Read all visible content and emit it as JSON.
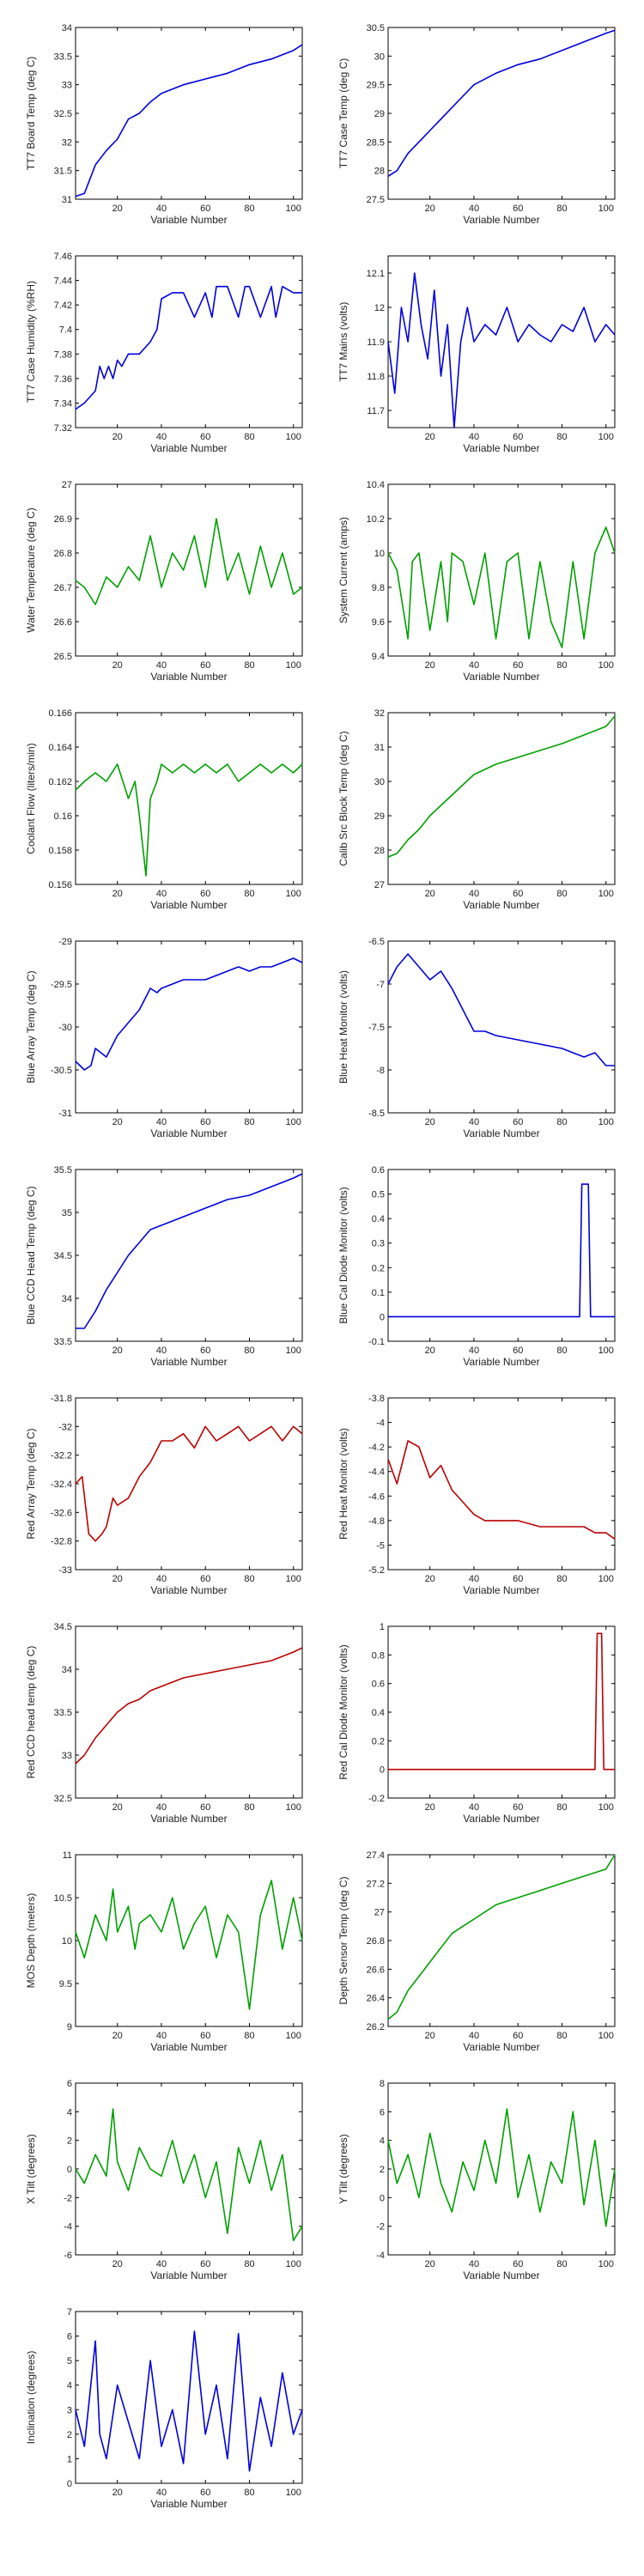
{
  "colors": {
    "blue": "#0000dd",
    "green": "#00a000",
    "red": "#bb0000"
  },
  "chart_data": [
    {
      "type": "line",
      "ylabel": "TT7 Board Temp (deg C)",
      "xlabel": "Variable Number",
      "ylim": [
        31,
        34
      ],
      "yticks": [
        "31",
        "31.5",
        "32",
        "32.5",
        "33",
        "33.5",
        "34"
      ],
      "color": "blue",
      "x": [
        1,
        5,
        10,
        15,
        20,
        25,
        30,
        35,
        40,
        50,
        60,
        70,
        80,
        90,
        100,
        104
      ],
      "y": [
        31.05,
        31.1,
        31.6,
        31.85,
        32.05,
        32.4,
        32.5,
        32.7,
        32.85,
        33.0,
        33.1,
        33.2,
        33.35,
        33.45,
        33.6,
        33.7
      ]
    },
    {
      "type": "line",
      "ylabel": "TT7 Case Temp (deg C)",
      "xlabel": "Variable Number",
      "ylim": [
        27.5,
        30.5
      ],
      "yticks": [
        "27.5",
        "28",
        "28.5",
        "29",
        "29.5",
        "30",
        "30.5"
      ],
      "color": "blue",
      "x": [
        1,
        5,
        10,
        15,
        20,
        25,
        30,
        35,
        40,
        50,
        60,
        70,
        80,
        90,
        100,
        104
      ],
      "y": [
        27.9,
        28.0,
        28.3,
        28.5,
        28.7,
        28.9,
        29.1,
        29.3,
        29.5,
        29.7,
        29.85,
        29.95,
        30.1,
        30.25,
        30.4,
        30.45
      ]
    },
    {
      "type": "line",
      "ylabel": "TT7 Case Humidity (%RH)",
      "xlabel": "Variable Number",
      "ylim": [
        7.32,
        7.46
      ],
      "yticks": [
        "7.32",
        "7.34",
        "7.36",
        "7.38",
        "7.4",
        "7.42",
        "7.44",
        "7.46"
      ],
      "color": "blue",
      "x": [
        1,
        5,
        10,
        12,
        14,
        16,
        18,
        20,
        22,
        25,
        30,
        35,
        38,
        40,
        45,
        50,
        55,
        60,
        63,
        65,
        70,
        75,
        78,
        80,
        85,
        90,
        92,
        95,
        100,
        104
      ],
      "y": [
        7.335,
        7.34,
        7.35,
        7.37,
        7.36,
        7.37,
        7.36,
        7.375,
        7.37,
        7.38,
        7.38,
        7.39,
        7.4,
        7.425,
        7.43,
        7.43,
        7.41,
        7.43,
        7.41,
        7.435,
        7.435,
        7.41,
        7.435,
        7.435,
        7.41,
        7.435,
        7.41,
        7.435,
        7.43,
        7.43
      ]
    },
    {
      "type": "line",
      "ylabel": "TT7 Mains  (volts)",
      "xlabel": "Variable Number",
      "ylim": [
        11.65,
        12.15
      ],
      "yticks": [
        "11.7",
        "11.8",
        "11.9",
        "12",
        "12.1"
      ],
      "color": "blue",
      "x": [
        1,
        4,
        7,
        10,
        13,
        16,
        19,
        22,
        25,
        28,
        31,
        34,
        37,
        40,
        45,
        50,
        55,
        60,
        65,
        70,
        75,
        80,
        85,
        90,
        95,
        100,
        104
      ],
      "y": [
        11.9,
        11.75,
        12.0,
        11.9,
        12.1,
        11.95,
        11.85,
        12.05,
        11.8,
        11.95,
        11.65,
        11.9,
        12.0,
        11.9,
        11.95,
        11.92,
        12.0,
        11.9,
        11.95,
        11.92,
        11.9,
        11.95,
        11.93,
        12.0,
        11.9,
        11.95,
        11.92
      ]
    },
    {
      "type": "line",
      "ylabel": "Water Temperature (deg C)",
      "xlabel": "Variable Number",
      "ylim": [
        26.5,
        27
      ],
      "yticks": [
        "26.5",
        "26.6",
        "26.7",
        "26.8",
        "26.9",
        "27"
      ],
      "color": "green",
      "x": [
        1,
        5,
        10,
        15,
        20,
        25,
        30,
        35,
        40,
        45,
        50,
        55,
        60,
        65,
        70,
        75,
        80,
        85,
        90,
        95,
        100,
        104
      ],
      "y": [
        26.72,
        26.7,
        26.65,
        26.73,
        26.7,
        26.76,
        26.72,
        26.85,
        26.7,
        26.8,
        26.75,
        26.85,
        26.7,
        26.9,
        26.72,
        26.8,
        26.68,
        26.82,
        26.7,
        26.8,
        26.68,
        26.7
      ]
    },
    {
      "type": "line",
      "ylabel": "System Current (amps)",
      "xlabel": "Variable Number",
      "ylim": [
        9.4,
        10.4
      ],
      "yticks": [
        "9.4",
        "9.6",
        "9.8",
        "10",
        "10.2",
        "10.4"
      ],
      "color": "green",
      "x": [
        1,
        5,
        10,
        12,
        15,
        20,
        25,
        28,
        30,
        35,
        40,
        45,
        50,
        55,
        60,
        65,
        70,
        75,
        80,
        85,
        90,
        95,
        100,
        104
      ],
      "y": [
        10.0,
        9.9,
        9.5,
        9.95,
        10.0,
        9.55,
        9.95,
        9.6,
        10.0,
        9.95,
        9.7,
        10.0,
        9.5,
        9.95,
        10.0,
        9.5,
        9.95,
        9.6,
        9.45,
        9.95,
        9.5,
        10.0,
        10.15,
        10.0
      ]
    },
    {
      "type": "line",
      "ylabel": "Coolant Flow (liters/min)",
      "xlabel": "Variable Number",
      "ylim": [
        0.156,
        0.166
      ],
      "yticks": [
        "0.156",
        "0.158",
        "0.16",
        "0.162",
        "0.164",
        "0.166"
      ],
      "color": "green",
      "x": [
        1,
        5,
        10,
        15,
        20,
        25,
        28,
        30,
        33,
        35,
        38,
        40,
        45,
        50,
        55,
        60,
        65,
        70,
        75,
        80,
        85,
        90,
        95,
        100,
        104
      ],
      "y": [
        0.1615,
        0.162,
        0.1625,
        0.162,
        0.163,
        0.161,
        0.162,
        0.16,
        0.1565,
        0.161,
        0.162,
        0.163,
        0.1625,
        0.163,
        0.1625,
        0.163,
        0.1625,
        0.163,
        0.162,
        0.1625,
        0.163,
        0.1625,
        0.163,
        0.1625,
        0.163
      ]
    },
    {
      "type": "line",
      "ylabel": "Calib Src Block Temp (deg C)",
      "xlabel": "Variable Number",
      "ylim": [
        27,
        32
      ],
      "yticks": [
        "27",
        "28",
        "29",
        "30",
        "31",
        "32"
      ],
      "color": "green",
      "x": [
        1,
        5,
        10,
        15,
        20,
        25,
        30,
        35,
        40,
        50,
        60,
        70,
        80,
        90,
        100,
        104
      ],
      "y": [
        27.8,
        27.9,
        28.3,
        28.6,
        29.0,
        29.3,
        29.6,
        29.9,
        30.2,
        30.5,
        30.7,
        30.9,
        31.1,
        31.35,
        31.6,
        31.9
      ]
    },
    {
      "type": "line",
      "ylabel": "Blue Array Temp (deg C)",
      "xlabel": "Variable Number",
      "ylim": [
        -31,
        -29
      ],
      "yticks": [
        "-31",
        "-30.5",
        "-30",
        "-29.5",
        "-29"
      ],
      "color": "blue",
      "x": [
        1,
        5,
        8,
        10,
        15,
        20,
        25,
        30,
        35,
        38,
        40,
        45,
        50,
        55,
        60,
        65,
        70,
        75,
        80,
        85,
        90,
        95,
        100,
        104
      ],
      "y": [
        -30.4,
        -30.5,
        -30.45,
        -30.25,
        -30.35,
        -30.1,
        -29.95,
        -29.8,
        -29.55,
        -29.6,
        -29.55,
        -29.5,
        -29.45,
        -29.45,
        -29.45,
        -29.4,
        -29.35,
        -29.3,
        -29.35,
        -29.3,
        -29.3,
        -29.25,
        -29.2,
        -29.25
      ]
    },
    {
      "type": "line",
      "ylabel": "Blue Heat Monitor (volts)",
      "xlabel": "Variable Number",
      "ylim": [
        -8.5,
        -6.5
      ],
      "yticks": [
        "-8.5",
        "-8",
        "-7.5",
        "-7",
        "-6.5"
      ],
      "color": "blue",
      "x": [
        1,
        5,
        10,
        15,
        20,
        25,
        30,
        35,
        40,
        45,
        50,
        60,
        70,
        80,
        90,
        95,
        100,
        104
      ],
      "y": [
        -7.0,
        -6.8,
        -6.65,
        -6.8,
        -6.95,
        -6.85,
        -7.05,
        -7.3,
        -7.55,
        -7.55,
        -7.6,
        -7.65,
        -7.7,
        -7.75,
        -7.85,
        -7.8,
        -7.95,
        -7.95
      ]
    },
    {
      "type": "line",
      "ylabel": "Blue CCD Head Temp (deg C)",
      "xlabel": "Variable Number",
      "ylim": [
        33.5,
        35.5
      ],
      "yticks": [
        "33.5",
        "34",
        "34.5",
        "35",
        "35.5"
      ],
      "color": "blue",
      "x": [
        1,
        5,
        10,
        15,
        20,
        25,
        30,
        35,
        40,
        50,
        60,
        70,
        80,
        90,
        100,
        104
      ],
      "y": [
        33.65,
        33.65,
        33.85,
        34.1,
        34.3,
        34.5,
        34.65,
        34.8,
        34.85,
        34.95,
        35.05,
        35.15,
        35.2,
        35.3,
        35.4,
        35.45
      ]
    },
    {
      "type": "line",
      "ylabel": "Blue Cal Diode Monitor (volts)",
      "xlabel": "Variable Number",
      "ylim": [
        -0.1,
        0.6
      ],
      "yticks": [
        "-0.1",
        "0",
        "0.1",
        "0.2",
        "0.3",
        "0.4",
        "0.5",
        "0.6"
      ],
      "color": "blue",
      "x": [
        1,
        10,
        20,
        30,
        40,
        50,
        60,
        70,
        80,
        88,
        89,
        90,
        91,
        92,
        93,
        100,
        104
      ],
      "y": [
        0,
        0,
        0,
        0,
        0,
        0,
        0,
        0,
        0,
        0,
        0.54,
        0.54,
        0.54,
        0.54,
        0,
        0,
        0
      ]
    },
    {
      "type": "line",
      "ylabel": "Red Array Temp (deg C)",
      "xlabel": "Variable Number",
      "ylim": [
        -33,
        -31.8
      ],
      "yticks": [
        "-33",
        "-32.8",
        "-32.6",
        "-32.4",
        "-32.2",
        "-32",
        "-31.8"
      ],
      "color": "red",
      "x": [
        1,
        4,
        7,
        10,
        13,
        15,
        18,
        20,
        25,
        30,
        35,
        40,
        45,
        50,
        55,
        60,
        65,
        70,
        75,
        80,
        85,
        90,
        95,
        100,
        104
      ],
      "y": [
        -32.4,
        -32.35,
        -32.75,
        -32.8,
        -32.75,
        -32.7,
        -32.5,
        -32.55,
        -32.5,
        -32.35,
        -32.25,
        -32.1,
        -32.1,
        -32.05,
        -32.15,
        -32.0,
        -32.1,
        -32.05,
        -32.0,
        -32.1,
        -32.05,
        -32.0,
        -32.1,
        -32.0,
        -32.05
      ]
    },
    {
      "type": "line",
      "ylabel": "Red Heat Monitor (volts)",
      "xlabel": "Variable Number",
      "ylim": [
        -5.2,
        -3.8
      ],
      "yticks": [
        "-5.2",
        "-5",
        "-4.8",
        "-4.6",
        "-4.4",
        "-4.2",
        "-4",
        "-3.8"
      ],
      "color": "red",
      "x": [
        1,
        5,
        10,
        15,
        20,
        25,
        30,
        35,
        40,
        45,
        50,
        60,
        70,
        80,
        90,
        95,
        100,
        104
      ],
      "y": [
        -4.3,
        -4.5,
        -4.15,
        -4.2,
        -4.45,
        -4.35,
        -4.55,
        -4.65,
        -4.75,
        -4.8,
        -4.8,
        -4.8,
        -4.85,
        -4.85,
        -4.85,
        -4.9,
        -4.9,
        -4.95
      ]
    },
    {
      "type": "line",
      "ylabel": "Red CCD head temp (deg C)",
      "xlabel": "Variable Number",
      "ylim": [
        32.5,
        34.5
      ],
      "yticks": [
        "32.5",
        "33",
        "33.5",
        "34",
        "34.5"
      ],
      "color": "red",
      "x": [
        1,
        5,
        10,
        15,
        20,
        25,
        30,
        35,
        40,
        50,
        60,
        70,
        80,
        90,
        100,
        104
      ],
      "y": [
        32.9,
        33.0,
        33.2,
        33.35,
        33.5,
        33.6,
        33.65,
        33.75,
        33.8,
        33.9,
        33.95,
        34.0,
        34.05,
        34.1,
        34.2,
        34.25
      ]
    },
    {
      "type": "line",
      "ylabel": "Red Cal Diode Monitor (volts)",
      "xlabel": "Variable Number",
      "ylim": [
        -0.2,
        1
      ],
      "yticks": [
        "-0.2",
        "0",
        "0.2",
        "0.4",
        "0.6",
        "0.8",
        "1"
      ],
      "color": "red",
      "x": [
        1,
        10,
        20,
        30,
        40,
        50,
        60,
        70,
        80,
        90,
        95,
        96,
        97,
        98,
        99,
        100,
        104
      ],
      "y": [
        0,
        0,
        0,
        0,
        0,
        0,
        0,
        0,
        0,
        0,
        0,
        0.95,
        0.95,
        0.95,
        0,
        0,
        0
      ]
    },
    {
      "type": "line",
      "ylabel": "MOS Depth  (meters)",
      "xlabel": "Variable Number",
      "ylim": [
        9,
        11
      ],
      "yticks": [
        "9",
        "9.5",
        "10",
        "10.5",
        "11"
      ],
      "color": "green",
      "x": [
        1,
        5,
        10,
        15,
        18,
        20,
        25,
        28,
        30,
        35,
        40,
        45,
        50,
        55,
        60,
        65,
        70,
        75,
        80,
        85,
        90,
        95,
        100,
        104
      ],
      "y": [
        10.1,
        9.8,
        10.3,
        10.0,
        10.6,
        10.1,
        10.4,
        9.9,
        10.2,
        10.3,
        10.1,
        10.5,
        9.9,
        10.2,
        10.4,
        9.8,
        10.3,
        10.1,
        9.2,
        10.3,
        10.7,
        9.9,
        10.5,
        10.0
      ]
    },
    {
      "type": "line",
      "ylabel": "Depth Sensor Temp (deg C)",
      "xlabel": "Variable Number",
      "ylim": [
        26.2,
        27.4
      ],
      "yticks": [
        "26.2",
        "26.4",
        "26.6",
        "26.8",
        "27",
        "27.2",
        "27.4"
      ],
      "color": "green",
      "x": [
        1,
        5,
        10,
        15,
        20,
        25,
        30,
        35,
        40,
        50,
        60,
        70,
        80,
        90,
        100,
        104
      ],
      "y": [
        26.25,
        26.3,
        26.45,
        26.55,
        26.65,
        26.75,
        26.85,
        26.9,
        26.95,
        27.05,
        27.1,
        27.15,
        27.2,
        27.25,
        27.3,
        27.4
      ]
    },
    {
      "type": "line",
      "ylabel": "X Tilt  (degrees)",
      "xlabel": "Variable Number",
      "ylim": [
        -6,
        6
      ],
      "yticks": [
        "-6",
        "-4",
        "-2",
        "0",
        "2",
        "4",
        "6"
      ],
      "color": "green",
      "x": [
        1,
        5,
        10,
        15,
        18,
        20,
        25,
        30,
        35,
        40,
        45,
        50,
        55,
        60,
        65,
        70,
        75,
        80,
        85,
        90,
        95,
        100,
        104
      ],
      "y": [
        0,
        -1,
        1,
        -0.5,
        4.2,
        0.5,
        -1.5,
        1.5,
        0,
        -0.5,
        2,
        -1,
        1,
        -2,
        0.5,
        -4.5,
        1.5,
        -1,
        2,
        -1.5,
        1,
        -5,
        -4
      ]
    },
    {
      "type": "line",
      "ylabel": "Y Tilt  (degrees)",
      "xlabel": "Variable Number",
      "ylim": [
        -4,
        8
      ],
      "yticks": [
        "-4",
        "-2",
        "0",
        "2",
        "4",
        "6",
        "8"
      ],
      "color": "green",
      "x": [
        1,
        5,
        10,
        15,
        20,
        25,
        30,
        35,
        40,
        45,
        50,
        55,
        60,
        65,
        70,
        75,
        80,
        85,
        90,
        95,
        100,
        104
      ],
      "y": [
        4,
        1,
        3,
        0,
        4.5,
        1,
        -1,
        2.5,
        0.5,
        4,
        1,
        6.2,
        0,
        3,
        -1,
        2.5,
        1,
        6,
        -0.5,
        4,
        -2,
        2
      ]
    },
    {
      "type": "line",
      "ylabel": "Inclination  (degrees)",
      "xlabel": "Variable Number",
      "ylim": [
        0,
        7
      ],
      "yticks": [
        "0",
        "1",
        "2",
        "3",
        "4",
        "5",
        "6",
        "7"
      ],
      "color": "blue",
      "x": [
        1,
        5,
        10,
        12,
        15,
        20,
        25,
        30,
        35,
        40,
        45,
        50,
        55,
        60,
        65,
        70,
        75,
        80,
        85,
        90,
        95,
        100,
        104
      ],
      "y": [
        3,
        1.5,
        5.8,
        2,
        1,
        4,
        2.5,
        1,
        5,
        1.5,
        3,
        0.8,
        6.2,
        2,
        4,
        1,
        6.1,
        0.5,
        3.5,
        1.5,
        4.5,
        2,
        3
      ]
    }
  ]
}
